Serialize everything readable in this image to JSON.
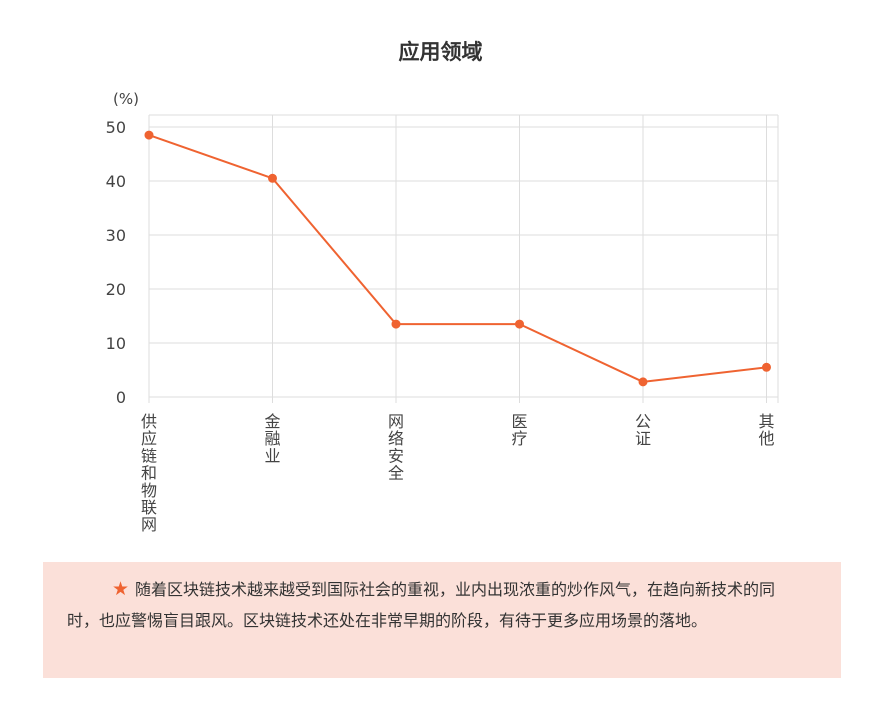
{
  "chart_data": {
    "type": "line",
    "title": "应用领域",
    "ylabel": "(%)",
    "xlabel": "",
    "ylim": [
      0,
      50
    ],
    "yticks": [
      0,
      10,
      20,
      30,
      40,
      50
    ],
    "grid": true,
    "categories": [
      "供应链和物联网",
      "金融业",
      "网络安全",
      "医疗",
      "公证",
      "其他"
    ],
    "series": [
      {
        "values": [
          48.5,
          40.5,
          13.5,
          13.5,
          2.8,
          5.5
        ],
        "color": "#ef6331"
      }
    ]
  },
  "note": {
    "icon": "star-icon",
    "text": "随着区块链技术越来越受到国际社会的重视，业内出现浓重的炒作风气，在趋向新技术的同时，也应警惕盲目跟风。区块链技术还处在非常早期的阶段，有待于更多应用场景的落地。"
  },
  "colors": {
    "line": "#ef6331",
    "grid": "#dddddd",
    "note_background": "#fbe0d9",
    "text": "#333333"
  }
}
